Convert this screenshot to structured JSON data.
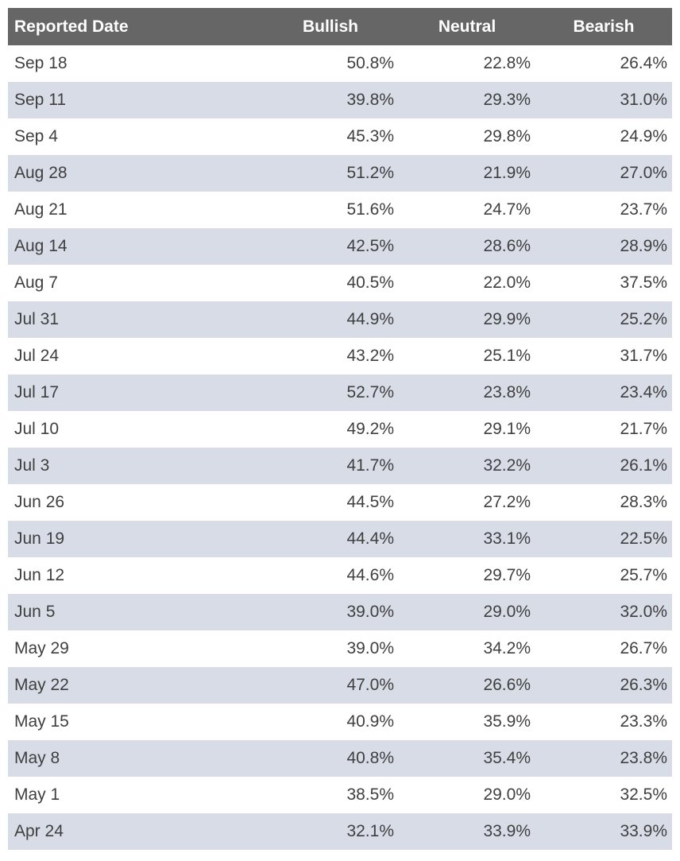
{
  "colors": {
    "header_bg": "#666666",
    "header_text": "#ffffff",
    "band_bg": "#d7dce6",
    "row_bg": "#ffffff",
    "text": "#3f3f3f"
  },
  "table": {
    "columns": [
      {
        "key": "date",
        "label": "Reported Date",
        "align": "left"
      },
      {
        "key": "bullish",
        "label": "Bullish",
        "align": "right"
      },
      {
        "key": "neutral",
        "label": "Neutral",
        "align": "right"
      },
      {
        "key": "bearish",
        "label": "Bearish",
        "align": "right"
      }
    ],
    "rows": [
      {
        "date": "Sep 18",
        "bullish": "50.8%",
        "neutral": "22.8%",
        "bearish": "26.4%"
      },
      {
        "date": "Sep 11",
        "bullish": "39.8%",
        "neutral": "29.3%",
        "bearish": "31.0%"
      },
      {
        "date": "Sep 4",
        "bullish": "45.3%",
        "neutral": "29.8%",
        "bearish": "24.9%"
      },
      {
        "date": "Aug 28",
        "bullish": "51.2%",
        "neutral": "21.9%",
        "bearish": "27.0%"
      },
      {
        "date": "Aug 21",
        "bullish": "51.6%",
        "neutral": "24.7%",
        "bearish": "23.7%"
      },
      {
        "date": "Aug 14",
        "bullish": "42.5%",
        "neutral": "28.6%",
        "bearish": "28.9%"
      },
      {
        "date": "Aug 7",
        "bullish": "40.5%",
        "neutral": "22.0%",
        "bearish": "37.5%"
      },
      {
        "date": "Jul 31",
        "bullish": "44.9%",
        "neutral": "29.9%",
        "bearish": "25.2%"
      },
      {
        "date": "Jul 24",
        "bullish": "43.2%",
        "neutral": "25.1%",
        "bearish": "31.7%"
      },
      {
        "date": "Jul 17",
        "bullish": "52.7%",
        "neutral": "23.8%",
        "bearish": "23.4%"
      },
      {
        "date": "Jul 10",
        "bullish": "49.2%",
        "neutral": "29.1%",
        "bearish": "21.7%"
      },
      {
        "date": "Jul 3",
        "bullish": "41.7%",
        "neutral": "32.2%",
        "bearish": "26.1%"
      },
      {
        "date": "Jun 26",
        "bullish": "44.5%",
        "neutral": "27.2%",
        "bearish": "28.3%"
      },
      {
        "date": "Jun 19",
        "bullish": "44.4%",
        "neutral": "33.1%",
        "bearish": "22.5%"
      },
      {
        "date": "Jun 12",
        "bullish": "44.6%",
        "neutral": "29.7%",
        "bearish": "25.7%"
      },
      {
        "date": "Jun 5",
        "bullish": "39.0%",
        "neutral": "29.0%",
        "bearish": "32.0%"
      },
      {
        "date": "May 29",
        "bullish": "39.0%",
        "neutral": "34.2%",
        "bearish": "26.7%"
      },
      {
        "date": "May 22",
        "bullish": "47.0%",
        "neutral": "26.6%",
        "bearish": "26.3%"
      },
      {
        "date": "May 15",
        "bullish": "40.9%",
        "neutral": "35.9%",
        "bearish": "23.3%"
      },
      {
        "date": "May 8",
        "bullish": "40.8%",
        "neutral": "35.4%",
        "bearish": "23.8%"
      },
      {
        "date": "May 1",
        "bullish": "38.5%",
        "neutral": "29.0%",
        "bearish": "32.5%"
      },
      {
        "date": "Apr 24",
        "bullish": "32.1%",
        "neutral": "33.9%",
        "bearish": "33.9%"
      }
    ]
  },
  "chart_data": {
    "type": "table",
    "title": "",
    "columns": [
      "Reported Date",
      "Bullish",
      "Neutral",
      "Bearish"
    ],
    "categories": [
      "Sep 18",
      "Sep 11",
      "Sep 4",
      "Aug 28",
      "Aug 21",
      "Aug 14",
      "Aug 7",
      "Jul 31",
      "Jul 24",
      "Jul 17",
      "Jul 10",
      "Jul 3",
      "Jun 26",
      "Jun 19",
      "Jun 12",
      "Jun 5",
      "May 29",
      "May 22",
      "May 15",
      "May 8",
      "May 1",
      "Apr 24"
    ],
    "series": [
      {
        "name": "Bullish",
        "values": [
          50.8,
          39.8,
          45.3,
          51.2,
          51.6,
          42.5,
          40.5,
          44.9,
          43.2,
          52.7,
          49.2,
          41.7,
          44.5,
          44.4,
          44.6,
          39.0,
          39.0,
          47.0,
          40.9,
          40.8,
          38.5,
          32.1
        ]
      },
      {
        "name": "Neutral",
        "values": [
          22.8,
          29.3,
          29.8,
          21.9,
          24.7,
          28.6,
          22.0,
          29.9,
          25.1,
          23.8,
          29.1,
          32.2,
          27.2,
          33.1,
          29.7,
          29.0,
          34.2,
          26.6,
          35.9,
          35.4,
          29.0,
          33.9
        ]
      },
      {
        "name": "Bearish",
        "values": [
          26.4,
          31.0,
          24.9,
          27.0,
          23.7,
          28.9,
          37.5,
          25.2,
          31.7,
          23.4,
          21.7,
          26.1,
          28.3,
          22.5,
          25.7,
          32.0,
          26.7,
          26.3,
          23.3,
          23.8,
          32.5,
          33.9
        ]
      }
    ],
    "unit": "%",
    "layout_hints": {
      "banding": "alternate-rows",
      "grid": false,
      "legend": "none"
    }
  }
}
